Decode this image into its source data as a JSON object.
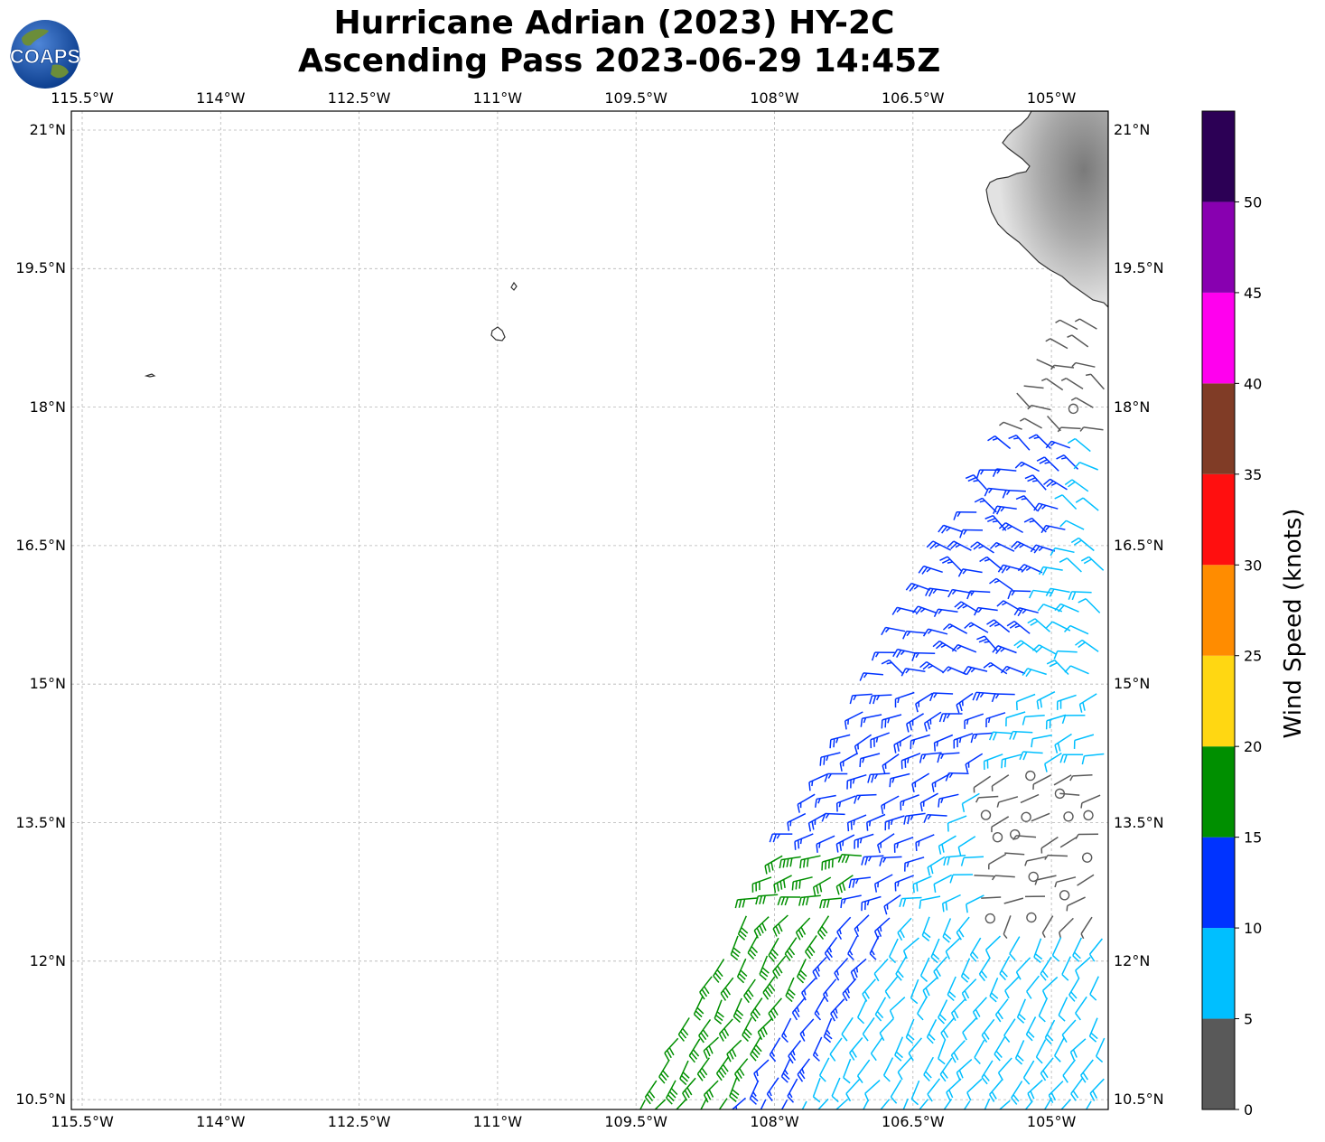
{
  "title": {
    "line1": "Hurricane Adrian (2023) HY-2C",
    "line2": "Ascending Pass 2023-06-29 14:45Z"
  },
  "logo": {
    "text": "COAPS"
  },
  "map": {
    "lon_ticks": [
      "115.5°W",
      "114°W",
      "112.5°W",
      "111°W",
      "109.5°W",
      "108°W",
      "106.5°W",
      "105°W"
    ],
    "lat_ticks": [
      "21°N",
      "19.5°N",
      "18°N",
      "16.5°N",
      "15°N",
      "13.5°N",
      "12°N",
      "10.5°N"
    ],
    "lon_range": [
      -115.6,
      -104.4
    ],
    "lat_range": [
      10.4,
      21.2
    ],
    "land_color": "#9a9a9a",
    "coast_color": "#333333",
    "grid": true
  },
  "colorbar": {
    "label": "Wind Speed (knots)",
    "ticks": [
      "0",
      "5",
      "10",
      "15",
      "20",
      "25",
      "30",
      "35",
      "40",
      "45",
      "50"
    ],
    "segments": [
      {
        "min": 0,
        "max": 5,
        "color": "#595959"
      },
      {
        "min": 5,
        "max": 10,
        "color": "#00bfff"
      },
      {
        "min": 10,
        "max": 15,
        "color": "#0033ff"
      },
      {
        "min": 15,
        "max": 20,
        "color": "#008f00"
      },
      {
        "min": 20,
        "max": 25,
        "color": "#ffd712"
      },
      {
        "min": 25,
        "max": 30,
        "color": "#ff8c00"
      },
      {
        "min": 30,
        "max": 35,
        "color": "#ff0f0f"
      },
      {
        "min": 35,
        "max": 40,
        "color": "#803c26"
      },
      {
        "min": 40,
        "max": 45,
        "color": "#ff00ee"
      },
      {
        "min": 45,
        "max": 50,
        "color": "#8800b0"
      },
      {
        "min": 50,
        "max": 55,
        "color": "#2c0055"
      }
    ]
  }
}
